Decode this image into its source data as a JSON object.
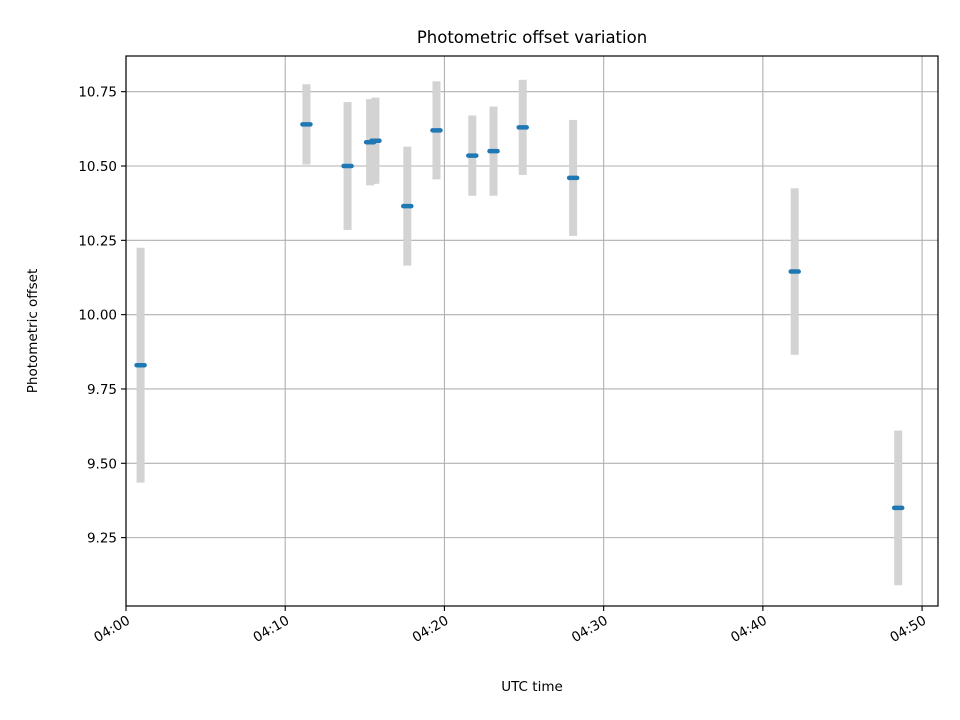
{
  "chart_data": {
    "type": "scatter",
    "title": "Photometric offset variation",
    "xlabel": "UTC time",
    "ylabel": "Photometric offset",
    "x_is_time": true,
    "xlim": [
      "04:00",
      "04:51"
    ],
    "ylim": [
      9.02,
      10.87
    ],
    "x_ticks": [
      "04:00",
      "04:10",
      "04:20",
      "04:30",
      "04:40",
      "04:50"
    ],
    "y_ticks": [
      "9.25",
      "9.50",
      "9.75",
      "10.00",
      "10.25",
      "10.50",
      "10.75"
    ],
    "grid": true,
    "marker_color": "#1f77b4",
    "errorbar_color": "#d3d3d3",
    "series": [
      {
        "points": [
          {
            "x": "04:00:55",
            "y": 9.83,
            "err": 0.395
          },
          {
            "x": "04:11:20",
            "y": 10.64,
            "err": 0.135
          },
          {
            "x": "04:13:55",
            "y": 10.5,
            "err": 0.215
          },
          {
            "x": "04:15:20",
            "y": 10.58,
            "err": 0.145
          },
          {
            "x": "04:15:40",
            "y": 10.585,
            "err": 0.145
          },
          {
            "x": "04:17:40",
            "y": 10.365,
            "err": 0.2
          },
          {
            "x": "04:19:30",
            "y": 10.62,
            "err": 0.165
          },
          {
            "x": "04:21:45",
            "y": 10.535,
            "err": 0.135
          },
          {
            "x": "04:23:05",
            "y": 10.55,
            "err": 0.15
          },
          {
            "x": "04:24:55",
            "y": 10.63,
            "err": 0.16
          },
          {
            "x": "04:28:05",
            "y": 10.46,
            "err": 0.195
          },
          {
            "x": "04:42:00",
            "y": 10.145,
            "err": 0.28
          },
          {
            "x": "04:48:30",
            "y": 9.35,
            "err": 0.26
          }
        ]
      }
    ]
  }
}
